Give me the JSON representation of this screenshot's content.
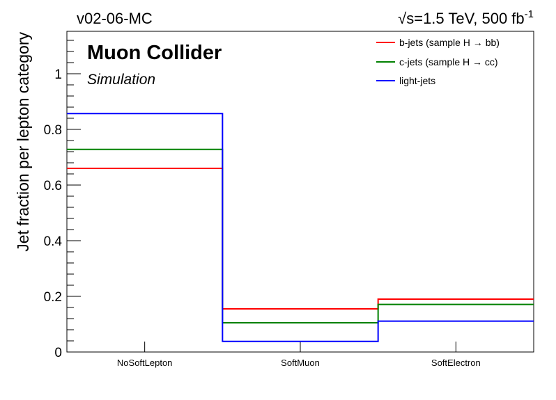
{
  "header": {
    "version": "v02-06-MC",
    "energy_sqrt": "√s",
    "energy_value": "=1.5 TeV, 500 fb",
    "energy_exp": "-1"
  },
  "labels": {
    "collider": "Muon Collider",
    "simulation": "Simulation"
  },
  "chart_data": {
    "type": "step-histogram",
    "categories": [
      "NoSoftLepton",
      "SoftMuon",
      "SoftElectron"
    ],
    "ylabel": "Jet fraction per lepton category",
    "xlabel": "",
    "ylim": [
      0,
      1.15
    ],
    "yticks": [
      0,
      0.2,
      0.4,
      0.6,
      0.8,
      1
    ],
    "ytick_labels": [
      "0",
      "0.2",
      "0.4",
      "0.6",
      "0.8",
      "1"
    ],
    "legend_position": "top-right",
    "grid": false,
    "series": [
      {
        "name": "b-jets (sample H → bb)",
        "color": "#ff0000",
        "values": [
          0.66,
          0.155,
          0.19
        ]
      },
      {
        "name": "c-jets (sample H → cc)",
        "color": "#008000",
        "values": [
          0.728,
          0.105,
          0.171
        ]
      },
      {
        "name": "light-jets",
        "color": "#0000ff",
        "values": [
          0.857,
          0.038,
          0.111
        ]
      }
    ]
  }
}
